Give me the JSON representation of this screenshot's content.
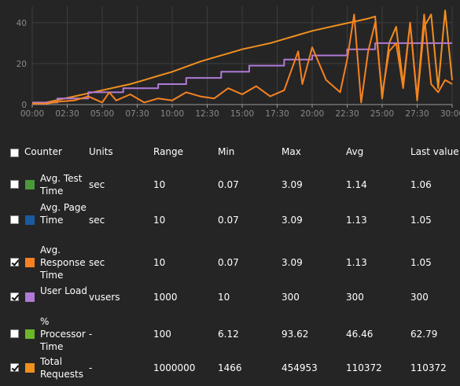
{
  "colors": {
    "background": "#252526",
    "total_requests": "#f0901e",
    "user_load": "#b07ad6",
    "response_time": "#f58220",
    "avg_test_time": "#4a9a3c",
    "avg_page_time": "#1a5aa0",
    "processor_time": "#6ab82a"
  },
  "chart_data": {
    "type": "line",
    "y_ticks": [
      "0",
      "20",
      "40"
    ],
    "ylim": [
      0,
      48
    ],
    "x_ticks": [
      "00:00",
      "02:30",
      "05:00",
      "07:30",
      "10:00",
      "12:30",
      "15:00",
      "17:30",
      "20:00",
      "22:30",
      "25:00",
      "27:30",
      "30:00"
    ],
    "xlim_minutes": [
      0,
      30
    ],
    "grid": true,
    "series": [
      {
        "name": "Total Requests",
        "color": "#f0901e",
        "x": [
          0,
          1,
          2,
          3,
          4,
          5,
          6,
          7,
          8,
          9,
          10,
          11,
          12,
          13,
          14,
          15,
          16,
          17,
          18,
          19,
          20,
          21,
          22,
          23,
          24,
          24.5,
          25,
          25.5,
          26,
          26.5,
          27,
          27.5,
          28,
          28.5,
          29,
          29.5,
          30
        ],
        "y": [
          0.5,
          1,
          2.5,
          4,
          5.5,
          7,
          8.5,
          10,
          12,
          14,
          16,
          18.5,
          21,
          23,
          25,
          27,
          28.5,
          30,
          32,
          34,
          36,
          37.5,
          39,
          40.5,
          42,
          43,
          3,
          30,
          38,
          10,
          40,
          2,
          38,
          44,
          8,
          46,
          12
        ]
      },
      {
        "name": "User Load",
        "color": "#b07ad6",
        "x": [
          0,
          1.8,
          1.8,
          4,
          4,
          6.5,
          6.5,
          9,
          9,
          11,
          11,
          13.5,
          13.5,
          15.5,
          15.5,
          18,
          18,
          20,
          20,
          22.5,
          22.5,
          24.5,
          24.5,
          30
        ],
        "y": [
          1,
          1,
          3,
          3,
          6,
          6,
          8,
          8,
          10,
          10,
          13,
          13,
          16,
          16,
          19,
          19,
          22,
          22,
          24,
          24,
          27,
          27,
          30,
          30
        ]
      },
      {
        "name": "Avg. Response Time",
        "color": "#f58220",
        "x": [
          0,
          1,
          2,
          3,
          4,
          5,
          5.5,
          6,
          7,
          8,
          9,
          10,
          11,
          12,
          13,
          14,
          15,
          16,
          17,
          18,
          19,
          19.3,
          20,
          21,
          22,
          22.5,
          23,
          23.5,
          24,
          24.5,
          25,
          25.5,
          26,
          26.5,
          27,
          27.5,
          28,
          28.5,
          29,
          29.5,
          30
        ],
        "y": [
          0.5,
          0.5,
          1.5,
          2,
          4,
          1,
          6,
          2,
          5,
          1,
          3,
          2,
          6,
          4,
          3,
          8,
          5,
          9,
          4,
          7,
          26,
          10,
          28,
          12,
          6,
          22,
          44,
          1,
          26,
          40,
          5,
          26,
          30,
          8,
          40,
          3,
          44,
          10,
          6,
          12,
          10
        ]
      }
    ]
  },
  "table": {
    "headers": {
      "counter": "Counter",
      "units": "Units",
      "range": "Range",
      "min": "Min",
      "max": "Max",
      "avg": "Avg",
      "last": "Last value"
    },
    "rows": [
      {
        "checked": false,
        "color": "#4a9a3c",
        "name": "Avg. Test Time",
        "units": "sec",
        "range": "10",
        "min": "0.07",
        "max": "3.09",
        "avg": "1.14",
        "last": "1.06"
      },
      {
        "checked": false,
        "color": "#1a5aa0",
        "name": "Avg. Page Time",
        "units": "sec",
        "range": "10",
        "min": "0.07",
        "max": "3.09",
        "avg": "1.13",
        "last": "1.05"
      },
      {
        "checked": true,
        "color": "#f58220",
        "name": "Avg. Response Time",
        "units": "sec",
        "range": "10",
        "min": "0.07",
        "max": "3.09",
        "avg": "1.13",
        "last": "1.05"
      },
      {
        "checked": true,
        "color": "#b07ad6",
        "name": "User Load",
        "units": "vusers",
        "range": "1000",
        "min": "10",
        "max": "300",
        "avg": "300",
        "last": "300"
      },
      {
        "checked": false,
        "color": "#6ab82a",
        "name": "% Processor Time",
        "units": "-",
        "range": "100",
        "min": "6.12",
        "max": "93.62",
        "avg": "46.46",
        "last": "62.79"
      },
      {
        "checked": true,
        "color": "#f0901e",
        "name": "Total Requests",
        "units": "-",
        "range": "1000000",
        "min": "1466",
        "max": "454953",
        "avg": "110372",
        "last": "110372"
      }
    ]
  }
}
